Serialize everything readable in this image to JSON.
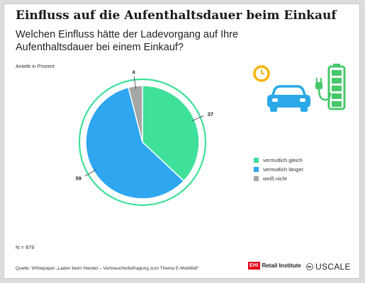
{
  "title": "Einfluss auf die Aufenthaltsdauer beim Einkauf",
  "subtitle": "Welchen Einfluss hätte der Ladevorgang auf Ihre Aufenthaltsdauer bei einem Einkauf?",
  "unit_note": "Anteile in Prozent",
  "sample_size": "N = 879",
  "source": "Quelle: Whitepaper „Laden beim Handel – Verbraucherbefragung zum Thema E-Mobilität“",
  "logos": {
    "ehi_box": "EHI",
    "ehi_text": "Retail Institute",
    "uscale_text": "USCALE"
  },
  "icon": {
    "name": "ev-charging-icon",
    "colors": [
      "#f5b400",
      "#2ba8e8",
      "#46c86a"
    ]
  },
  "chart_data": {
    "type": "pie",
    "slices": [
      {
        "label": "vermutlich gleich",
        "value": 37,
        "color": "#3ee09a"
      },
      {
        "label": "vermutlich länger",
        "value": 59,
        "color": "#2ea6f0"
      },
      {
        "label": "weiß nicht",
        "value": 4,
        "color": "#a7a7a7"
      }
    ],
    "outer_ring_color": "#3ee09a",
    "legend_position": "right"
  }
}
